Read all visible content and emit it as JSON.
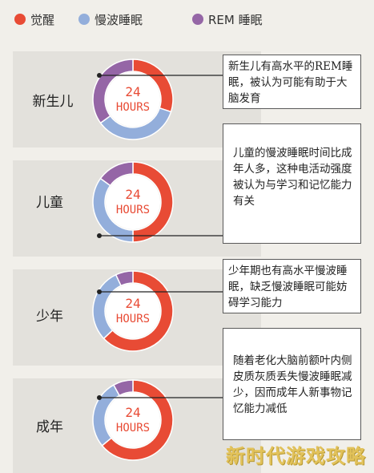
{
  "legend": [
    {
      "name": "觉醒",
      "color": "#e84b35"
    },
    {
      "name": "慢波睡眠",
      "color": "#93aedb"
    },
    {
      "name": "REM 睡眠",
      "color": "#9566a6"
    }
  ],
  "colors": {
    "awake": "#e84b35",
    "slow_wave": "#93aedb",
    "rem": "#9566a6",
    "center_text": "#e84b35"
  },
  "center_text": {
    "line1": "24",
    "line2": "HOURS"
  },
  "chart_data": [
    {
      "type": "pie",
      "stage": "新生儿",
      "categories": [
        "觉醒",
        "慢波睡眠",
        "REM 睡眠"
      ],
      "values": [
        30,
        35,
        35
      ],
      "center_label": "24 HOURS",
      "note": "新生儿有高水平的REM睡眠，被认为可能有助于大脑发育"
    },
    {
      "type": "pie",
      "stage": "儿童",
      "categories": [
        "觉醒",
        "慢波睡眠",
        "REM 睡眠"
      ],
      "values": [
        50,
        35,
        15
      ],
      "center_label": "24 HOURS",
      "note": "儿童的慢波睡眠时间比成年人多，这种电活动强度被认为与学习和记忆能力有关"
    },
    {
      "type": "pie",
      "stage": "少年",
      "categories": [
        "觉醒",
        "慢波睡眠",
        "REM 睡眠"
      ],
      "values": [
        63,
        30,
        7
      ],
      "center_label": "24 HOURS",
      "note": "少年期也有高水平慢波睡眠，缺乏慢波睡眠可能妨碍学习能力"
    },
    {
      "type": "pie",
      "stage": "成年",
      "categories": [
        "觉醒",
        "慢波睡眠",
        "REM 睡眠"
      ],
      "values": [
        64,
        28,
        8
      ],
      "center_label": "24 HOURS",
      "note": "随着老化大脑前额叶内侧皮质灰质丢失慢波睡眠减少，因而成年人新事物记忆能力减低"
    }
  ],
  "watermark": "新时代游戏攻略"
}
